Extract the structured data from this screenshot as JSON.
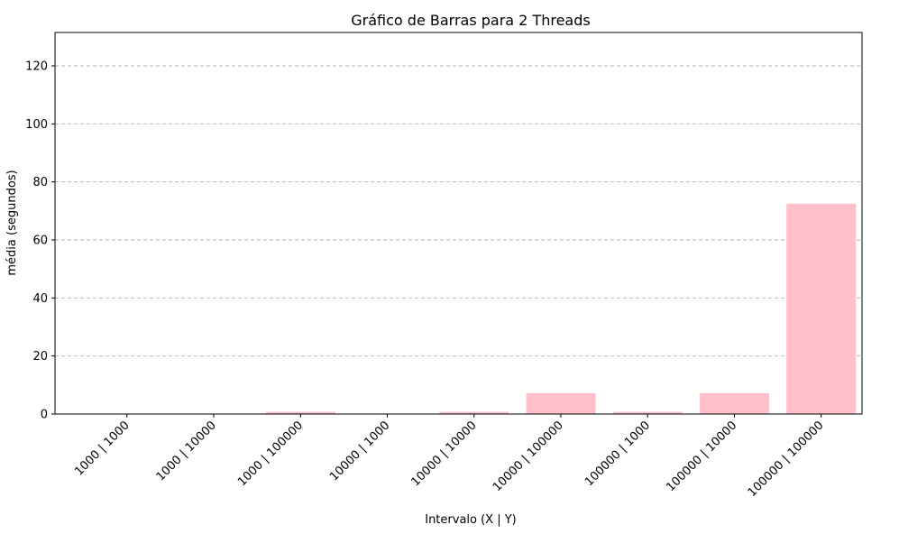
{
  "chart_data": {
    "type": "bar",
    "title": "Gráfico de Barras para 2 Threads",
    "xlabel": "Intervalo (X | Y)",
    "ylabel": "média (segundos)",
    "categories": [
      "1000 | 1000",
      "1000 | 10000",
      "1000 | 100000",
      "10000 | 1000",
      "10000 | 10000",
      "10000 | 100000",
      "100000 | 1000",
      "100000 | 10000",
      "100000 | 100000"
    ],
    "values": [
      0.05,
      0.15,
      0.75,
      0.15,
      0.75,
      7.2,
      0.75,
      7.2,
      72.5
    ],
    "ylim": [
      0,
      131.5
    ],
    "yticks": [
      0,
      20,
      40,
      60,
      80,
      100,
      120
    ],
    "grid": "y-dashed",
    "bar_color": "#ffc0cb"
  }
}
